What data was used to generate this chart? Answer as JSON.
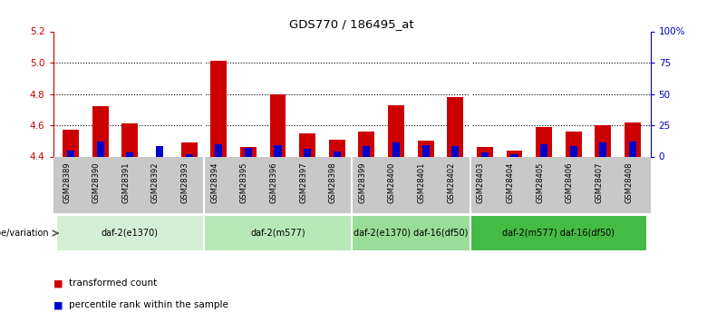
{
  "title": "GDS770 / 186495_at",
  "samples": [
    "GSM28389",
    "GSM28390",
    "GSM28391",
    "GSM28392",
    "GSM28393",
    "GSM28394",
    "GSM28395",
    "GSM28396",
    "GSM28397",
    "GSM28398",
    "GSM28399",
    "GSM28400",
    "GSM28401",
    "GSM28402",
    "GSM28403",
    "GSM28404",
    "GSM28405",
    "GSM28406",
    "GSM28407",
    "GSM28408"
  ],
  "transformed_count": [
    4.57,
    4.72,
    4.61,
    4.4,
    4.49,
    5.01,
    4.46,
    4.8,
    4.55,
    4.51,
    4.56,
    4.73,
    4.5,
    4.78,
    4.46,
    4.44,
    4.59,
    4.56,
    4.6,
    4.62
  ],
  "percentile_rank": [
    5,
    12,
    3,
    8,
    2,
    10,
    7,
    9,
    6,
    4,
    8,
    11,
    9,
    8,
    3,
    2,
    10,
    8,
    11,
    12
  ],
  "ylim_left": [
    4.4,
    5.2
  ],
  "ylim_right": [
    0,
    100
  ],
  "yticks_left": [
    4.4,
    4.6,
    4.8,
    5.0,
    5.2
  ],
  "yticks_right": [
    0,
    25,
    50,
    75,
    100
  ],
  "ytick_labels_right": [
    "0",
    "25",
    "50",
    "75",
    "100%"
  ],
  "groups": [
    {
      "label": "daf-2(e1370)",
      "start": 0,
      "end": 5,
      "color": "#d4f0d4"
    },
    {
      "label": "daf-2(m577)",
      "start": 5,
      "end": 10,
      "color": "#b8e8b8"
    },
    {
      "label": "daf-2(e1370) daf-16(df50)",
      "start": 10,
      "end": 14,
      "color": "#98dd98"
    },
    {
      "label": "daf-2(m577) daf-16(df50)",
      "start": 14,
      "end": 20,
      "color": "#44bb44"
    }
  ],
  "bar_color_red": "#cc0000",
  "bar_color_blue": "#0000cc",
  "baseline": 4.4,
  "bar_width": 0.55,
  "blue_bar_width": 0.25,
  "legend_red": "transformed count",
  "legend_blue": "percentile rank within the sample",
  "genotype_label": "genotype/variation",
  "left_axis_color": "#cc0000",
  "right_axis_color": "#0000bb",
  "grid_lines": [
    4.6,
    4.8,
    5.0
  ],
  "xtick_bg_color": "#c8c8c8"
}
